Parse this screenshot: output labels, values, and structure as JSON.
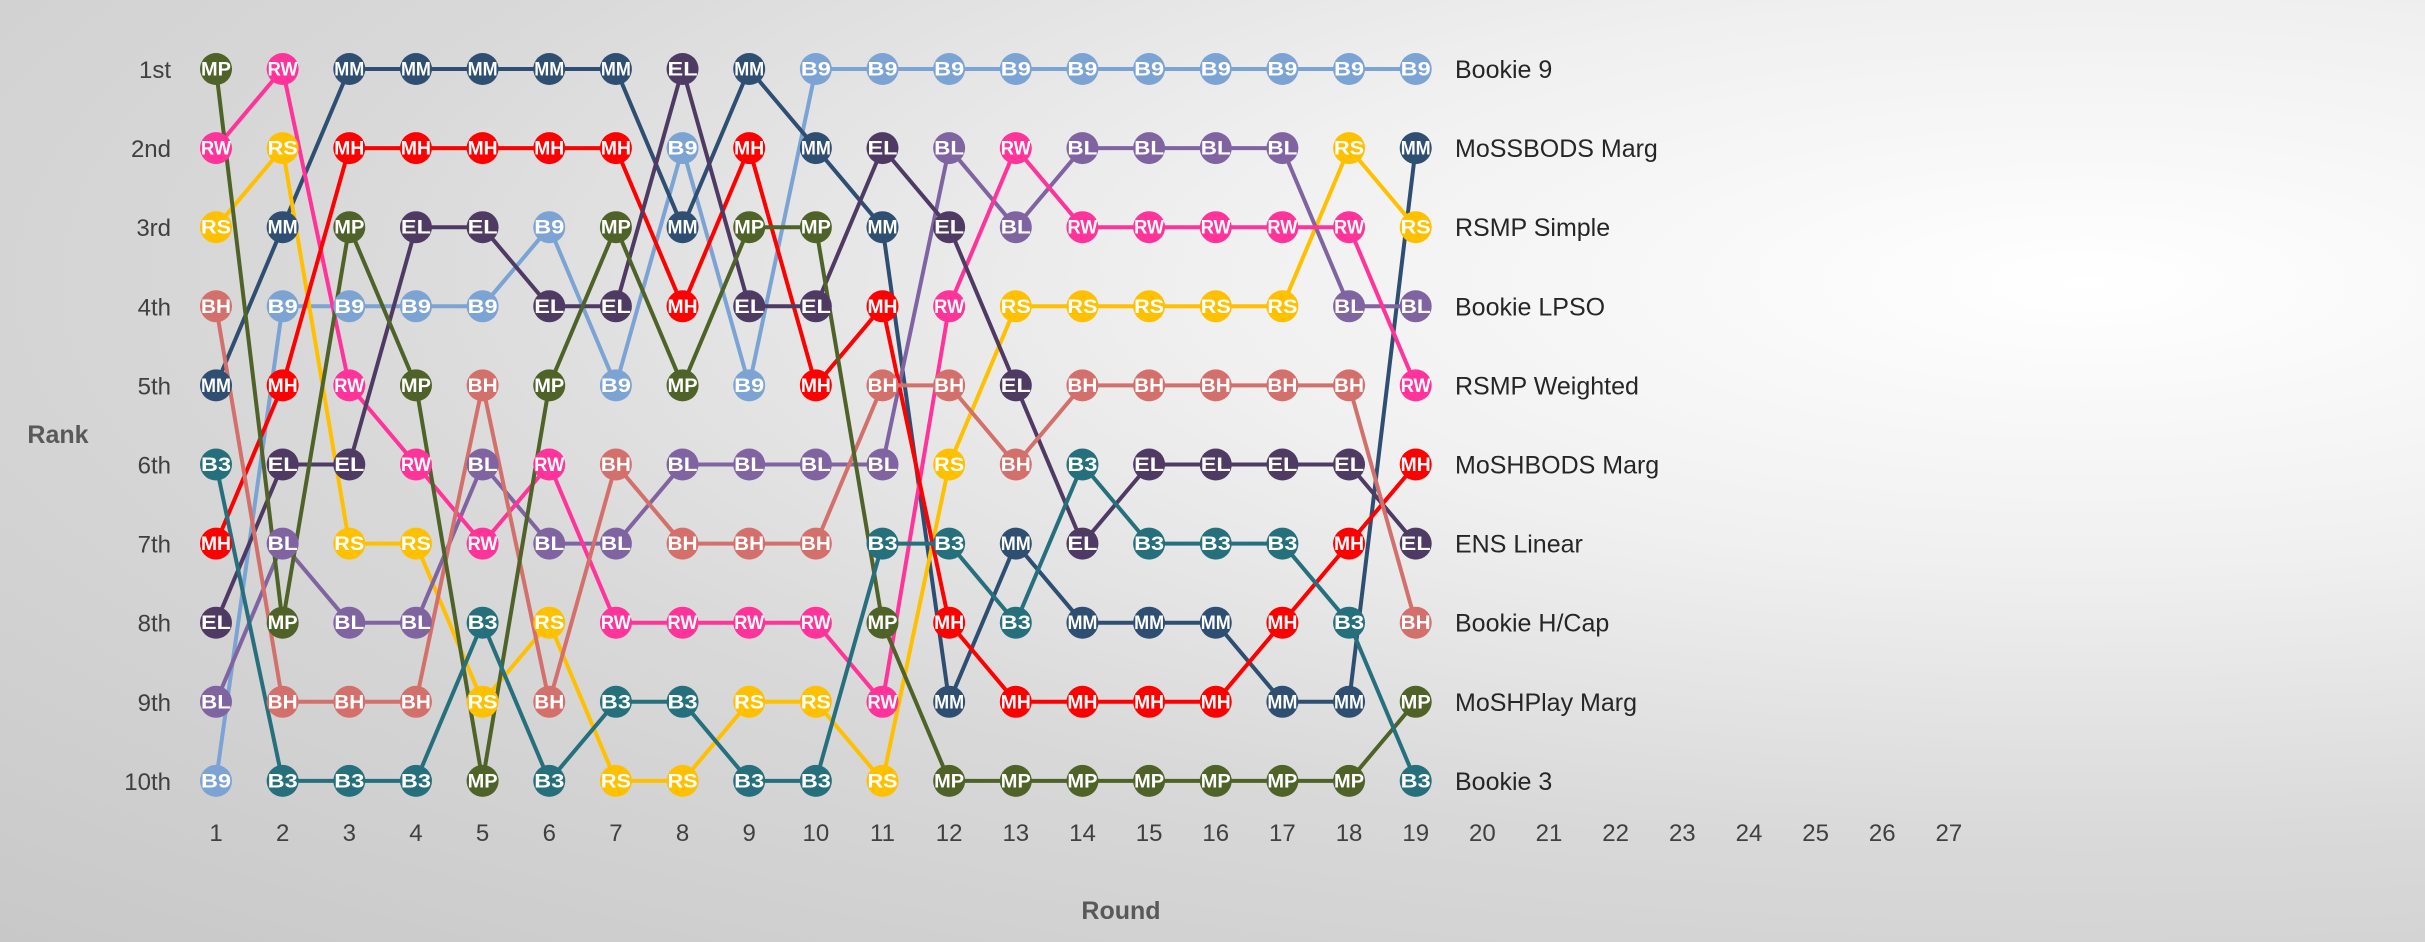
{
  "chart_data": {
    "type": "line",
    "title": "",
    "xlabel": "Round",
    "ylabel": "Rank",
    "x_ticks": [
      "1",
      "2",
      "3",
      "4",
      "5",
      "6",
      "7",
      "8",
      "9",
      "10",
      "11",
      "12",
      "13",
      "14",
      "15",
      "16",
      "17",
      "18",
      "19",
      "20",
      "21",
      "22",
      "23",
      "24",
      "25",
      "26",
      "27"
    ],
    "y_ticks": [
      "1st",
      "2nd",
      "3rd",
      "4th",
      "5th",
      "6th",
      "7th",
      "8th",
      "9th",
      "10th"
    ],
    "xlim": [
      1,
      27
    ],
    "ylim": [
      1,
      10
    ],
    "grid": false,
    "legend": "right",
    "series": [
      {
        "name": "Bookie 9",
        "abbr": "B9",
        "color": "#7ba3d3",
        "ranks": [
          10,
          4,
          4,
          4,
          4,
          3,
          5,
          2,
          5,
          1,
          1,
          1,
          1,
          1,
          1,
          1,
          1,
          1,
          1
        ]
      },
      {
        "name": "MoSSBODS Marg",
        "abbr": "MM",
        "color": "#2e4e72",
        "ranks": [
          5,
          3,
          1,
          1,
          1,
          1,
          1,
          3,
          1,
          2,
          3,
          9,
          7,
          8,
          8,
          8,
          9,
          9,
          2
        ]
      },
      {
        "name": "RSMP Simple",
        "abbr": "RS",
        "color": "#ffc000",
        "ranks": [
          3,
          2,
          7,
          7,
          9,
          8,
          10,
          10,
          9,
          9,
          10,
          6,
          4,
          4,
          4,
          4,
          4,
          2,
          3
        ]
      },
      {
        "name": "Bookie LPSO",
        "abbr": "BL",
        "color": "#8064a2",
        "ranks": [
          9,
          7,
          8,
          8,
          6,
          7,
          7,
          6,
          6,
          6,
          6,
          2,
          3,
          2,
          2,
          2,
          2,
          4,
          4
        ]
      },
      {
        "name": "RSMP Weighted",
        "abbr": "RW",
        "color": "#ff3399",
        "ranks": [
          2,
          1,
          5,
          6,
          7,
          6,
          8,
          8,
          8,
          8,
          9,
          4,
          2,
          3,
          3,
          3,
          3,
          3,
          5
        ]
      },
      {
        "name": "MoSHBODS Marg",
        "abbr": "MH",
        "color": "#ff0000",
        "ranks": [
          7,
          5,
          2,
          2,
          2,
          2,
          2,
          4,
          2,
          5,
          4,
          8,
          9,
          9,
          9,
          9,
          8,
          7,
          6
        ]
      },
      {
        "name": "ENS Linear",
        "abbr": "EL",
        "color": "#4f3a64",
        "ranks": [
          8,
          6,
          6,
          3,
          3,
          4,
          4,
          1,
          4,
          4,
          2,
          3,
          5,
          7,
          6,
          6,
          6,
          6,
          7
        ]
      },
      {
        "name": "Bookie H/Cap",
        "abbr": "BH",
        "color": "#d4706b",
        "ranks": [
          4,
          9,
          9,
          9,
          5,
          9,
          6,
          7,
          7,
          7,
          5,
          5,
          6,
          5,
          5,
          5,
          5,
          5,
          8
        ]
      },
      {
        "name": "MoSHPlay Marg",
        "abbr": "MP",
        "color": "#4f6228",
        "ranks": [
          1,
          8,
          3,
          5,
          10,
          5,
          3,
          5,
          3,
          3,
          8,
          10,
          10,
          10,
          10,
          10,
          10,
          10,
          9
        ]
      },
      {
        "name": "Bookie 3",
        "abbr": "B3",
        "color": "#26707d",
        "ranks": [
          6,
          10,
          10,
          10,
          8,
          10,
          9,
          9,
          10,
          10,
          7,
          7,
          8,
          6,
          7,
          7,
          7,
          8,
          10
        ]
      }
    ]
  }
}
